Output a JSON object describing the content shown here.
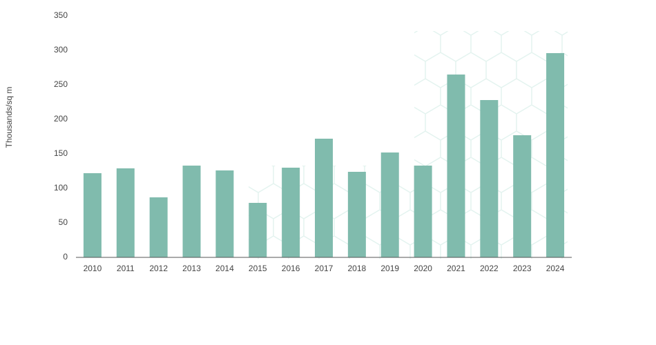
{
  "chart_data": {
    "type": "bar",
    "y_label": "Thousands/sq m",
    "categories": [
      "2010",
      "2011",
      "2012",
      "2013",
      "2014",
      "2015",
      "2016",
      "2017",
      "2018",
      "2019",
      "2020",
      "2021",
      "2022",
      "2023",
      "2024"
    ],
    "values": [
      122,
      129,
      87,
      133,
      126,
      79,
      130,
      172,
      124,
      152,
      133,
      265,
      228,
      177,
      296
    ],
    "color": "#80bbad",
    "ylim": [
      0,
      350
    ],
    "yticks": [
      0,
      50,
      100,
      150,
      200,
      250,
      300,
      350
    ],
    "grid": false
  }
}
